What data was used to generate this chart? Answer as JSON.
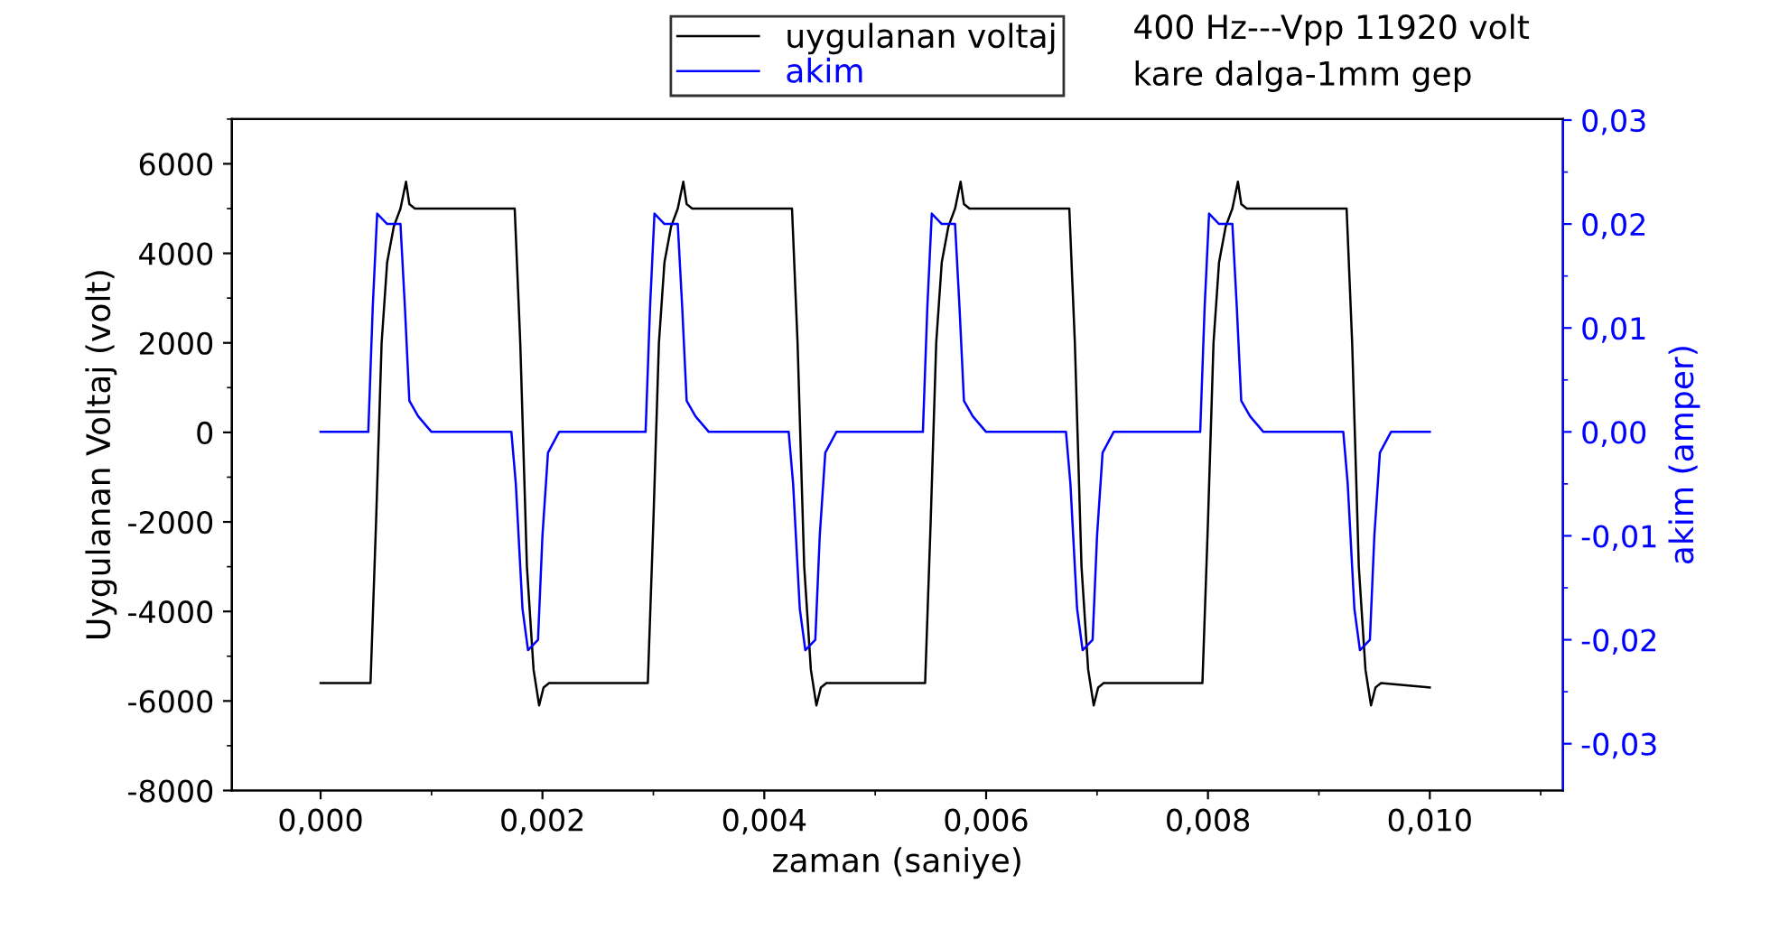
{
  "chart_data": {
    "type": "line",
    "xlabel": "zaman (saniye)",
    "ylabel": "Uygulanan Voltaj (volt)",
    "y2label": "akim (amper)",
    "annotations": [
      "400 Hz---Vpp 11920 volt",
      "kare dalga-1mm gep"
    ],
    "xlim": [
      -0.0008,
      0.0112
    ],
    "xticks": [
      {
        "value": 0,
        "label": "0,000"
      },
      {
        "value": 0.002,
        "label": "0,002"
      },
      {
        "value": 0.004,
        "label": "0,004"
      },
      {
        "value": 0.006,
        "label": "0,006"
      },
      {
        "value": 0.008,
        "label": "0,008"
      },
      {
        "value": 0.01,
        "label": "0,010"
      }
    ],
    "ylim": [
      -8000,
      7000
    ],
    "yticks": [
      -8000,
      -6000,
      -4000,
      -2000,
      0,
      2000,
      4000,
      6000
    ],
    "y2lim": [
      -0.0345,
      0.0301
    ],
    "y2ticks": [
      {
        "value": -0.03,
        "label": "-0,03"
      },
      {
        "value": -0.02,
        "label": "-0,02"
      },
      {
        "value": -0.01,
        "label": "-0,01"
      },
      {
        "value": 0,
        "label": "0,00"
      },
      {
        "value": 0.01,
        "label": "0,01"
      },
      {
        "value": 0.02,
        "label": "0,02"
      },
      {
        "value": 0.03,
        "label": "0,03"
      }
    ],
    "grid": false,
    "legend": "top",
    "line_style": "solid",
    "marker": "none",
    "series": [
      {
        "name": "uygulanan voltaj",
        "color": "#000000",
        "x": [
          0,
          0.00045,
          0.0005,
          0.00055,
          0.0006,
          0.00066,
          0.00072,
          0.00077,
          0.0008,
          0.00085,
          0.00175,
          0.0018,
          0.00186,
          0.00192,
          0.00197,
          0.00201,
          0.00206,
          0.00295,
          0.003,
          0.00305,
          0.0031,
          0.00316,
          0.00322,
          0.00327,
          0.0033,
          0.00335,
          0.00425,
          0.0043,
          0.00436,
          0.00442,
          0.00447,
          0.00451,
          0.00456,
          0.00545,
          0.0055,
          0.00555,
          0.0056,
          0.00566,
          0.00572,
          0.00577,
          0.0058,
          0.00585,
          0.00675,
          0.0068,
          0.00686,
          0.00692,
          0.00697,
          0.00701,
          0.00706,
          0.00795,
          0.008,
          0.00805,
          0.0081,
          0.00816,
          0.00822,
          0.00827,
          0.0083,
          0.00835,
          0.00925,
          0.0093,
          0.00936,
          0.00942,
          0.00947,
          0.00951,
          0.00956,
          0.01
        ],
        "values": [
          -5600,
          -5600,
          -2000,
          2000,
          3800,
          4600,
          5000,
          5600,
          5100,
          5000,
          5000,
          2000,
          -3000,
          -5300,
          -6100,
          -5700,
          -5600,
          -5600,
          -2000,
          2000,
          3800,
          4600,
          5000,
          5600,
          5100,
          5000,
          5000,
          2000,
          -3000,
          -5300,
          -6100,
          -5700,
          -5600,
          -5600,
          -2000,
          2000,
          3800,
          4600,
          5000,
          5600,
          5100,
          5000,
          5000,
          2000,
          -3000,
          -5300,
          -6100,
          -5700,
          -5600,
          -5600,
          -2000,
          2000,
          3800,
          4600,
          5000,
          5600,
          5100,
          5000,
          5000,
          2000,
          -3000,
          -5300,
          -6100,
          -5700,
          -5600,
          -5700
        ]
      },
      {
        "name": "akim",
        "color": "#0000ff",
        "axis": "y2",
        "x": [
          0,
          0.00043,
          0.00047,
          0.00051,
          0.0006,
          0.00072,
          0.00076,
          0.0008,
          0.00088,
          0.001,
          0.00172,
          0.00176,
          0.00182,
          0.00187,
          0.00196,
          0.002,
          0.00205,
          0.00215,
          0.00293,
          0.00297,
          0.00301,
          0.0031,
          0.00322,
          0.00326,
          0.0033,
          0.00338,
          0.0035,
          0.00422,
          0.00426,
          0.00432,
          0.00437,
          0.00446,
          0.0045,
          0.00455,
          0.00465,
          0.00543,
          0.00547,
          0.00551,
          0.0056,
          0.00572,
          0.00576,
          0.0058,
          0.00588,
          0.006,
          0.00672,
          0.00676,
          0.00682,
          0.00687,
          0.00696,
          0.007,
          0.00705,
          0.00715,
          0.00793,
          0.00797,
          0.00801,
          0.0081,
          0.00822,
          0.00826,
          0.0083,
          0.00838,
          0.0085,
          0.00922,
          0.00926,
          0.00932,
          0.00937,
          0.00946,
          0.0095,
          0.00955,
          0.00965,
          0.01
        ],
        "values": [
          0,
          0,
          0.012,
          0.021,
          0.02,
          0.02,
          0.012,
          0.003,
          0.0015,
          0,
          0,
          -0.005,
          -0.017,
          -0.021,
          -0.02,
          -0.01,
          -0.002,
          0,
          0,
          0.012,
          0.021,
          0.02,
          0.02,
          0.012,
          0.003,
          0.0015,
          0,
          0,
          -0.005,
          -0.017,
          -0.021,
          -0.02,
          -0.01,
          -0.002,
          0,
          0,
          0.012,
          0.021,
          0.02,
          0.02,
          0.012,
          0.003,
          0.0015,
          0,
          0,
          -0.005,
          -0.017,
          -0.021,
          -0.02,
          -0.01,
          -0.002,
          0,
          0,
          0.012,
          0.021,
          0.02,
          0.02,
          0.012,
          0.003,
          0.0015,
          0,
          0,
          -0.005,
          -0.017,
          -0.021,
          -0.02,
          -0.01,
          -0.002,
          0,
          0
        ]
      }
    ]
  }
}
